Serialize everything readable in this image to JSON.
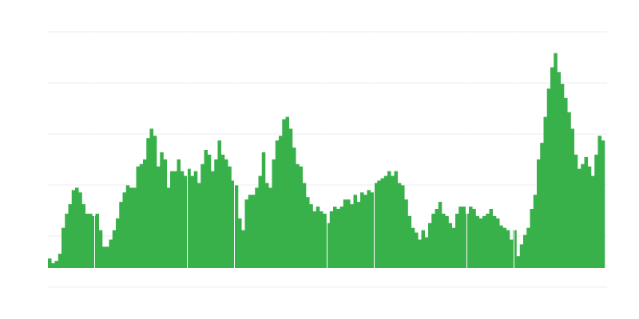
{
  "chart_data": {
    "type": "bar",
    "title": "",
    "xlabel": "",
    "ylabel": "",
    "ylim": [
      0,
      100
    ],
    "grid": true,
    "bar_color": "#39b14b",
    "grid_color": "#eeeeee",
    "values": [
      4,
      2,
      3,
      6,
      17,
      23,
      27,
      33,
      34,
      32,
      27,
      23,
      23,
      22,
      23,
      16,
      9,
      9,
      12,
      16,
      21,
      28,
      32,
      35,
      34,
      34,
      43,
      44,
      46,
      55,
      59,
      56,
      43,
      49,
      46,
      34,
      41,
      41,
      46,
      41,
      39,
      42,
      39,
      41,
      36,
      44,
      50,
      48,
      41,
      46,
      54,
      48,
      46,
      43,
      37,
      35,
      21,
      16,
      29,
      31,
      31,
      34,
      39,
      49,
      36,
      34,
      46,
      54,
      56,
      63,
      64,
      59,
      51,
      44,
      43,
      36,
      30,
      27,
      24,
      26,
      24,
      23,
      19,
      24,
      26,
      25,
      26,
      29,
      29,
      27,
      31,
      28,
      32,
      31,
      33,
      32,
      36,
      37,
      38,
      39,
      41,
      39,
      41,
      36,
      35,
      29,
      22,
      17,
      15,
      12,
      16,
      13,
      19,
      23,
      25,
      28,
      23,
      22,
      19,
      17,
      23,
      26,
      26,
      23,
      26,
      25,
      22,
      21,
      22,
      23,
      25,
      22,
      21,
      18,
      17,
      16,
      12,
      16,
      5,
      10,
      14,
      17,
      25,
      31,
      46,
      53,
      64,
      76,
      85,
      91,
      83,
      78,
      72,
      66,
      59,
      48,
      42,
      44,
      47,
      43,
      39,
      48,
      56,
      54
    ]
  }
}
